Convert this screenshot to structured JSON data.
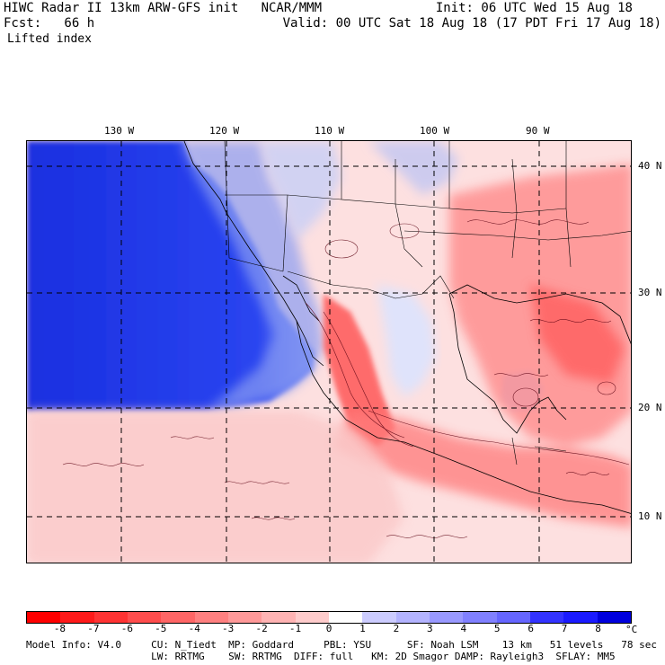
{
  "header": {
    "model_line": "HIWC Radar II 13km ARW-GFS init   NCAR/MMM",
    "forecast_line": "Fcst:   66 h",
    "field_name": "Lifted index",
    "init_line": "Init: 06 UTC Wed 15 Aug 18",
    "valid_line": "Valid: 00 UTC Sat 18 Aug 18 (17 PDT Fri 17 Aug 18)"
  },
  "map": {
    "longitude_labels": [
      "130 W",
      "120 W",
      "110 W",
      "100 W",
      "90 W"
    ],
    "latitude_labels": [
      "40 N",
      "30 N",
      "20 N",
      "10 N"
    ],
    "grid_line_style": "dashed",
    "region": "Eastern Pacific, Mexico, Gulf of Mexico, southern United States"
  },
  "colorbar": {
    "ticks": [
      "-8",
      "-7",
      "-6",
      "-5",
      "-4",
      "-3",
      "-2",
      "-1",
      "0",
      "1",
      "2",
      "3",
      "4",
      "5",
      "6",
      "7",
      "8"
    ],
    "unit": "°C",
    "colors": [
      "#ff0000",
      "#ff1a1a",
      "#ff3333",
      "#ff4d4d",
      "#ff6666",
      "#ff8080",
      "#ff9999",
      "#ffb3b3",
      "#ffcccc",
      "#ffffff",
      "#ccccff",
      "#b3b3ff",
      "#9999ff",
      "#8080ff",
      "#6666ff",
      "#3333ff",
      "#1a1aff",
      "#0000dd"
    ]
  },
  "footer": {
    "line1": "Model Info: V4.0     CU: N_Tiedt  MP: Goddard     PBL: YSU      SF: Noah LSM    13 km   51 levels   78 sec",
    "line2": "                     LW: RRTMG    SW: RRTMG  DIFF: full   KM: 2D Smagor DAMP: Rayleigh3  SFLAY: MM5"
  },
  "colors": {
    "stable_blue": "#1a33e6",
    "unstable_red": "#ff4040",
    "neutral": "#fff0f0"
  }
}
